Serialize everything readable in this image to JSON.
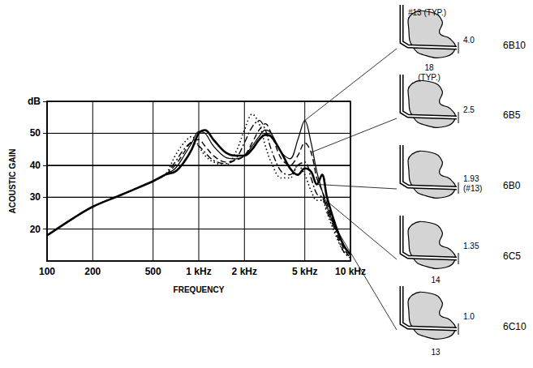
{
  "chart_data": {
    "type": "line",
    "xlabel": "FREQUENCY",
    "ylabel": "ACOUSTIC GAIN",
    "log": "x",
    "grid": true,
    "xlim": [
      100,
      10000
    ],
    "xticks": [
      100,
      200,
      500,
      {
        "value": 1000,
        "label": "1 kHz"
      },
      {
        "value": 2000,
        "label": "2 kHz"
      },
      {
        "value": 5000,
        "label": "5 kHz"
      },
      {
        "value": 10000,
        "label": "10 kHz"
      }
    ],
    "ylim": [
      10,
      60
    ],
    "yticks": [
      20,
      30,
      40,
      50,
      {
        "value": 60,
        "label": "dB"
      }
    ],
    "x": [
      100,
      150,
      200,
      300,
      400,
      500,
      600,
      700,
      800,
      900,
      1000,
      1100,
      1250,
      1500,
      1750,
      2000,
      2250,
      2500,
      2750,
      3000,
      3500,
      4000,
      4500,
      5000,
      5500,
      6000,
      6500,
      7000,
      8000,
      9000,
      10000
    ],
    "series": [
      {
        "name": "6B10",
        "color": "#000000",
        "line_style": "solid",
        "annotations": [
          "#13 (TYP.)",
          "4.0",
          "18",
          "(TYP.)"
        ],
        "values": [
          18,
          23.5,
          27,
          30.5,
          33,
          35,
          37,
          39,
          43,
          47,
          50.5,
          50,
          46,
          42.5,
          42,
          43,
          46,
          49,
          51,
          50,
          44,
          42,
          48,
          54,
          47,
          38,
          32,
          27,
          20,
          15,
          12
        ]
      },
      {
        "name": "6B5",
        "color": "#000000",
        "line_style": "dashed",
        "annotations": [
          "2.5"
        ],
        "values": [
          18,
          23.5,
          27,
          30.5,
          33,
          35,
          37,
          40,
          44,
          47.5,
          48,
          46,
          43,
          41,
          41.5,
          43,
          47,
          51,
          53,
          50,
          42,
          40,
          43,
          47,
          44,
          36,
          32,
          28,
          20,
          14,
          11
        ]
      },
      {
        "name": "6B0",
        "color": "#000000",
        "line_style": "bold",
        "annotations": [
          "1.93",
          "(#13)"
        ],
        "values": [
          18,
          23.5,
          27,
          30.5,
          33,
          35,
          37,
          38,
          41,
          45,
          50,
          51,
          48,
          44,
          43,
          43,
          45,
          48,
          49.5,
          49,
          44,
          39,
          37,
          39,
          38,
          34,
          37,
          30,
          21,
          15,
          12
        ]
      },
      {
        "name": "6C5",
        "color": "#000000",
        "line_style": "dashdot",
        "annotations": [
          "1.35",
          "14"
        ],
        "values": [
          18,
          23.5,
          27,
          30.5,
          33,
          35,
          37,
          41,
          45,
          47,
          46,
          44,
          41.5,
          40.5,
          42,
          47,
          52,
          54,
          51,
          45,
          38,
          37,
          40,
          41,
          36,
          31,
          30,
          26,
          19,
          13,
          11
        ]
      },
      {
        "name": "6C10",
        "color": "#000000",
        "line_style": "dotted",
        "annotations": [
          "1.0",
          "13"
        ],
        "values": [
          18,
          23.5,
          27,
          30.5,
          33,
          35,
          37,
          43,
          47,
          49,
          46,
          43,
          41,
          40,
          44,
          51,
          56,
          53,
          46,
          41,
          36,
          36,
          40,
          37,
          32,
          29,
          29,
          25,
          18,
          13,
          11
        ]
      }
    ]
  }
}
